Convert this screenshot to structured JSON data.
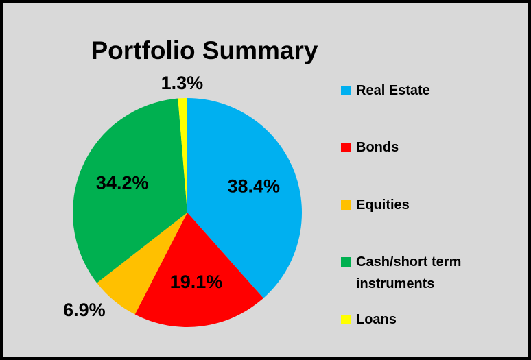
{
  "chart_data": {
    "type": "pie",
    "title": "Portfolio Summary",
    "categories": [
      "Real Estate",
      "Bonds",
      "Equities",
      "Cash/short term instruments",
      "Loans"
    ],
    "values": [
      38.4,
      19.1,
      6.9,
      34.2,
      1.3
    ],
    "value_labels": [
      "38.4%",
      "19.1%",
      "6.9%",
      "34.2%",
      "1.3%"
    ],
    "colors": [
      "#00b0f0",
      "#ff0000",
      "#ffc000",
      "#00b050",
      "#ffff00"
    ],
    "legend": "right"
  }
}
